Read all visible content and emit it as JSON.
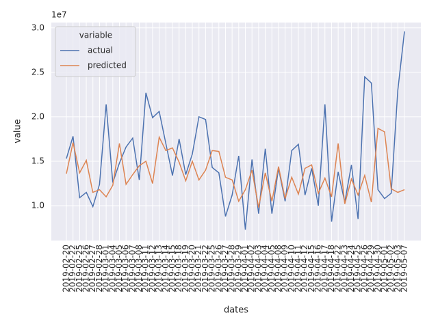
{
  "chart_data": {
    "type": "line",
    "x_label": "dates",
    "y_label": "value",
    "y_offset_label": "1e7",
    "legend_title": "variable",
    "legend": "upper left",
    "grid": true,
    "categories": [
      "2019-02-20",
      "2019-02-22",
      "2019-02-25",
      "2019-02-26",
      "2019-02-27",
      "2019-02-28",
      "2019-03-01",
      "2019-03-04",
      "2019-03-05",
      "2019-03-06",
      "2019-03-07",
      "2019-03-08",
      "2019-03-11",
      "2019-03-12",
      "2019-03-13",
      "2019-03-14",
      "2019-03-15",
      "2019-03-18",
      "2019-03-19",
      "2019-03-20",
      "2019-03-21",
      "2019-03-22",
      "2019-03-25",
      "2019-03-26",
      "2019-03-27",
      "2019-03-28",
      "2019-03-29",
      "2019-04-01",
      "2019-04-02",
      "2019-04-03",
      "2019-04-04",
      "2019-04-05",
      "2019-04-08",
      "2019-04-09",
      "2019-04-10",
      "2019-04-11",
      "2019-04-12",
      "2019-04-15",
      "2019-04-16",
      "2019-04-17",
      "2019-04-18",
      "2019-04-22",
      "2019-04-23",
      "2019-04-24",
      "2019-04-25",
      "2019-04-26",
      "2019-04-29",
      "2019-04-30",
      "2019-05-01",
      "2019-05-02",
      "2019-05-03",
      "2019-05-07"
    ],
    "series": [
      {
        "name": "actual",
        "color": "#4c72b0",
        "values": [
          15300000,
          17800000,
          10900000,
          11500000,
          9900000,
          12400000,
          21400000,
          12600000,
          14800000,
          16600000,
          17600000,
          12900000,
          22700000,
          19900000,
          20600000,
          17000000,
          13400000,
          17500000,
          13500000,
          15800000,
          20000000,
          19700000,
          14300000,
          13700000,
          8800000,
          11200000,
          15600000,
          7300000,
          15200000,
          9100000,
          16400000,
          9100000,
          14200000,
          10500000,
          16200000,
          16900000,
          11200000,
          14200000,
          10000000,
          21400000,
          8200000,
          13800000,
          10400000,
          14600000,
          8500000,
          24500000,
          23800000,
          11800000,
          10800000,
          11400000,
          23000000,
          29600000
        ]
      },
      {
        "name": "predicted",
        "color": "#dd8452",
        "values": [
          13600000,
          17100000,
          13700000,
          15100000,
          11500000,
          11800000,
          11000000,
          12300000,
          17000000,
          12400000,
          13500000,
          14500000,
          15000000,
          12500000,
          17700000,
          16200000,
          16500000,
          14900000,
          12800000,
          15000000,
          12900000,
          14000000,
          16200000,
          16100000,
          13200000,
          12900000,
          10500000,
          11800000,
          14000000,
          9800000,
          13700000,
          10500000,
          14400000,
          10800000,
          13200000,
          11300000,
          14200000,
          14600000,
          11400000,
          13100000,
          11000000,
          17000000,
          10200000,
          13000000,
          11200000,
          13400000,
          10400000,
          18700000,
          18300000,
          11900000,
          11500000,
          11800000
        ]
      }
    ],
    "ylim": [
      6080000,
      30600000
    ],
    "yticks": [
      {
        "value": 10000000,
        "label": "1.0"
      },
      {
        "value": 15000000,
        "label": "1.5"
      },
      {
        "value": 20000000,
        "label": "2.0"
      },
      {
        "value": 25000000,
        "label": "2.5"
      },
      {
        "value": 30000000,
        "label": "3.0"
      }
    ]
  }
}
